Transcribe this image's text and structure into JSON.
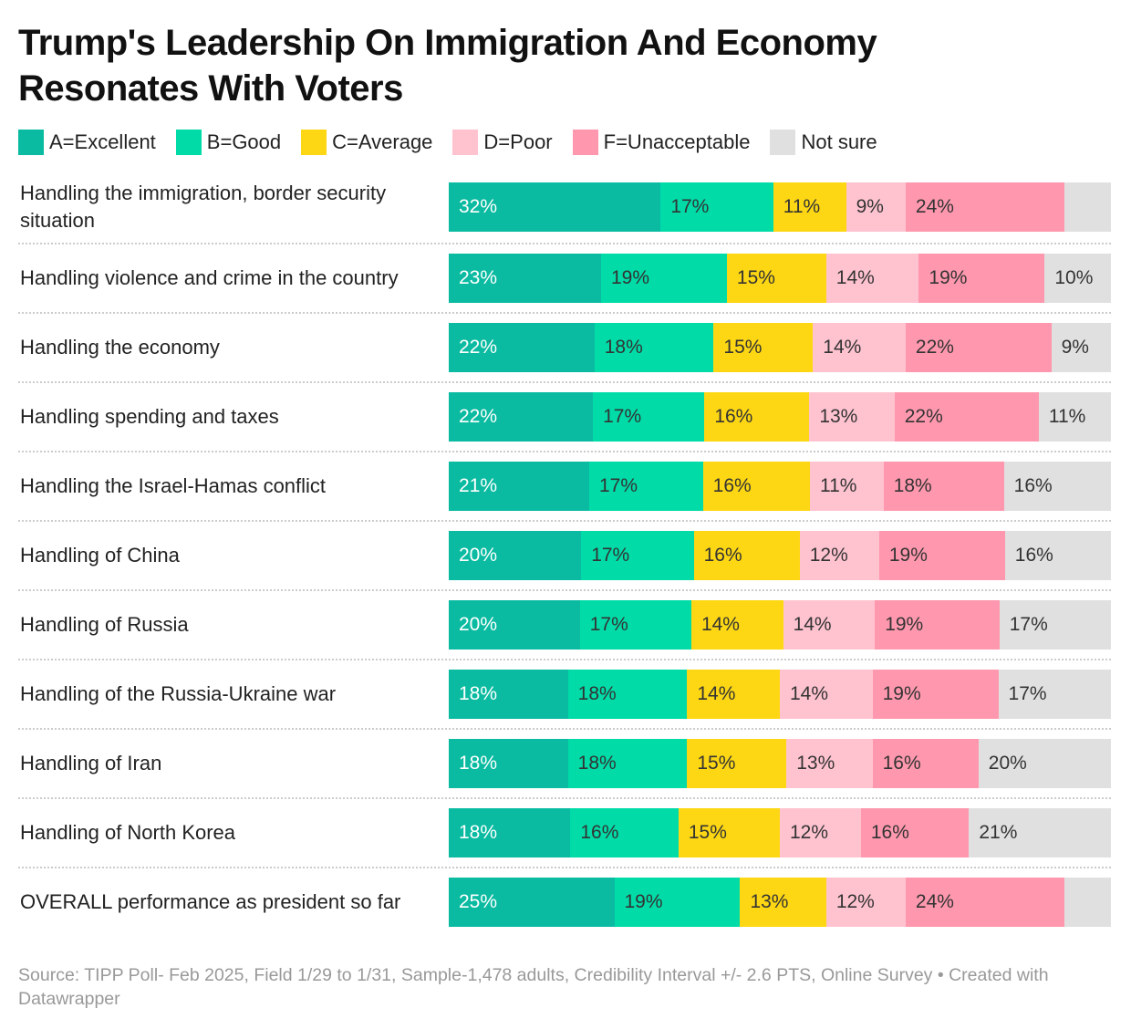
{
  "title": "Trump's Leadership On Immigration And Economy Resonates With Voters",
  "source": "Source: TIPP Poll- Feb 2025, Field 1/29 to 1/31, Sample-1,478 adults, Credibility Interval +/- 2.6 PTS, Online Survey • Created with Datawrapper",
  "chart_data": {
    "type": "bar",
    "orientation": "horizontal",
    "stacked": true,
    "legend_placement": "top-left",
    "series": [
      {
        "name": "A=Excellent",
        "color": "#0abba1",
        "label_color": "#ffffff"
      },
      {
        "name": "B=Good",
        "color": "#00dba8",
        "label_color": "#333333"
      },
      {
        "name": "C=Average",
        "color": "#fdd714",
        "label_color": "#333333"
      },
      {
        "name": "D=Poor",
        "color": "#ffc3d0",
        "label_color": "#333333"
      },
      {
        "name": "F=Unacceptable",
        "color": "#ff98ae",
        "label_color": "#333333"
      },
      {
        "name": "Not sure",
        "color": "#e0e0e0",
        "label_color": "#333333"
      }
    ],
    "categories": [
      "Handling the immigration, border security situation",
      "Handling violence and crime in the country",
      "Handling the economy",
      "Handling spending and taxes",
      "Handling the Israel-Hamas conflict",
      "Handling of China",
      "Handling of Russia",
      "Handling of the Russia-Ukraine war",
      "Handling of Iran",
      "Handling of North Korea",
      "OVERALL performance as president so far"
    ],
    "values": [
      [
        32,
        17,
        11,
        9,
        24,
        7
      ],
      [
        23,
        19,
        15,
        14,
        19,
        10
      ],
      [
        22,
        18,
        15,
        14,
        22,
        9
      ],
      [
        22,
        17,
        16,
        13,
        22,
        11
      ],
      [
        21,
        17,
        16,
        11,
        18,
        16
      ],
      [
        20,
        17,
        16,
        12,
        19,
        16
      ],
      [
        20,
        17,
        14,
        14,
        19,
        17
      ],
      [
        18,
        18,
        14,
        14,
        19,
        17
      ],
      [
        18,
        18,
        15,
        13,
        16,
        20
      ],
      [
        18,
        16,
        15,
        12,
        16,
        21
      ],
      [
        25,
        19,
        13,
        12,
        24,
        7
      ]
    ],
    "label_shown": [
      [
        true,
        true,
        true,
        true,
        true,
        false
      ],
      [
        true,
        true,
        true,
        true,
        true,
        true
      ],
      [
        true,
        true,
        true,
        true,
        true,
        true
      ],
      [
        true,
        true,
        true,
        true,
        true,
        true
      ],
      [
        true,
        true,
        true,
        true,
        true,
        true
      ],
      [
        true,
        true,
        true,
        true,
        true,
        true
      ],
      [
        true,
        true,
        true,
        true,
        true,
        true
      ],
      [
        true,
        true,
        true,
        true,
        true,
        true
      ],
      [
        true,
        true,
        true,
        true,
        true,
        true
      ],
      [
        true,
        true,
        true,
        true,
        true,
        true
      ],
      [
        true,
        true,
        true,
        true,
        true,
        false
      ]
    ],
    "unit": "%"
  }
}
